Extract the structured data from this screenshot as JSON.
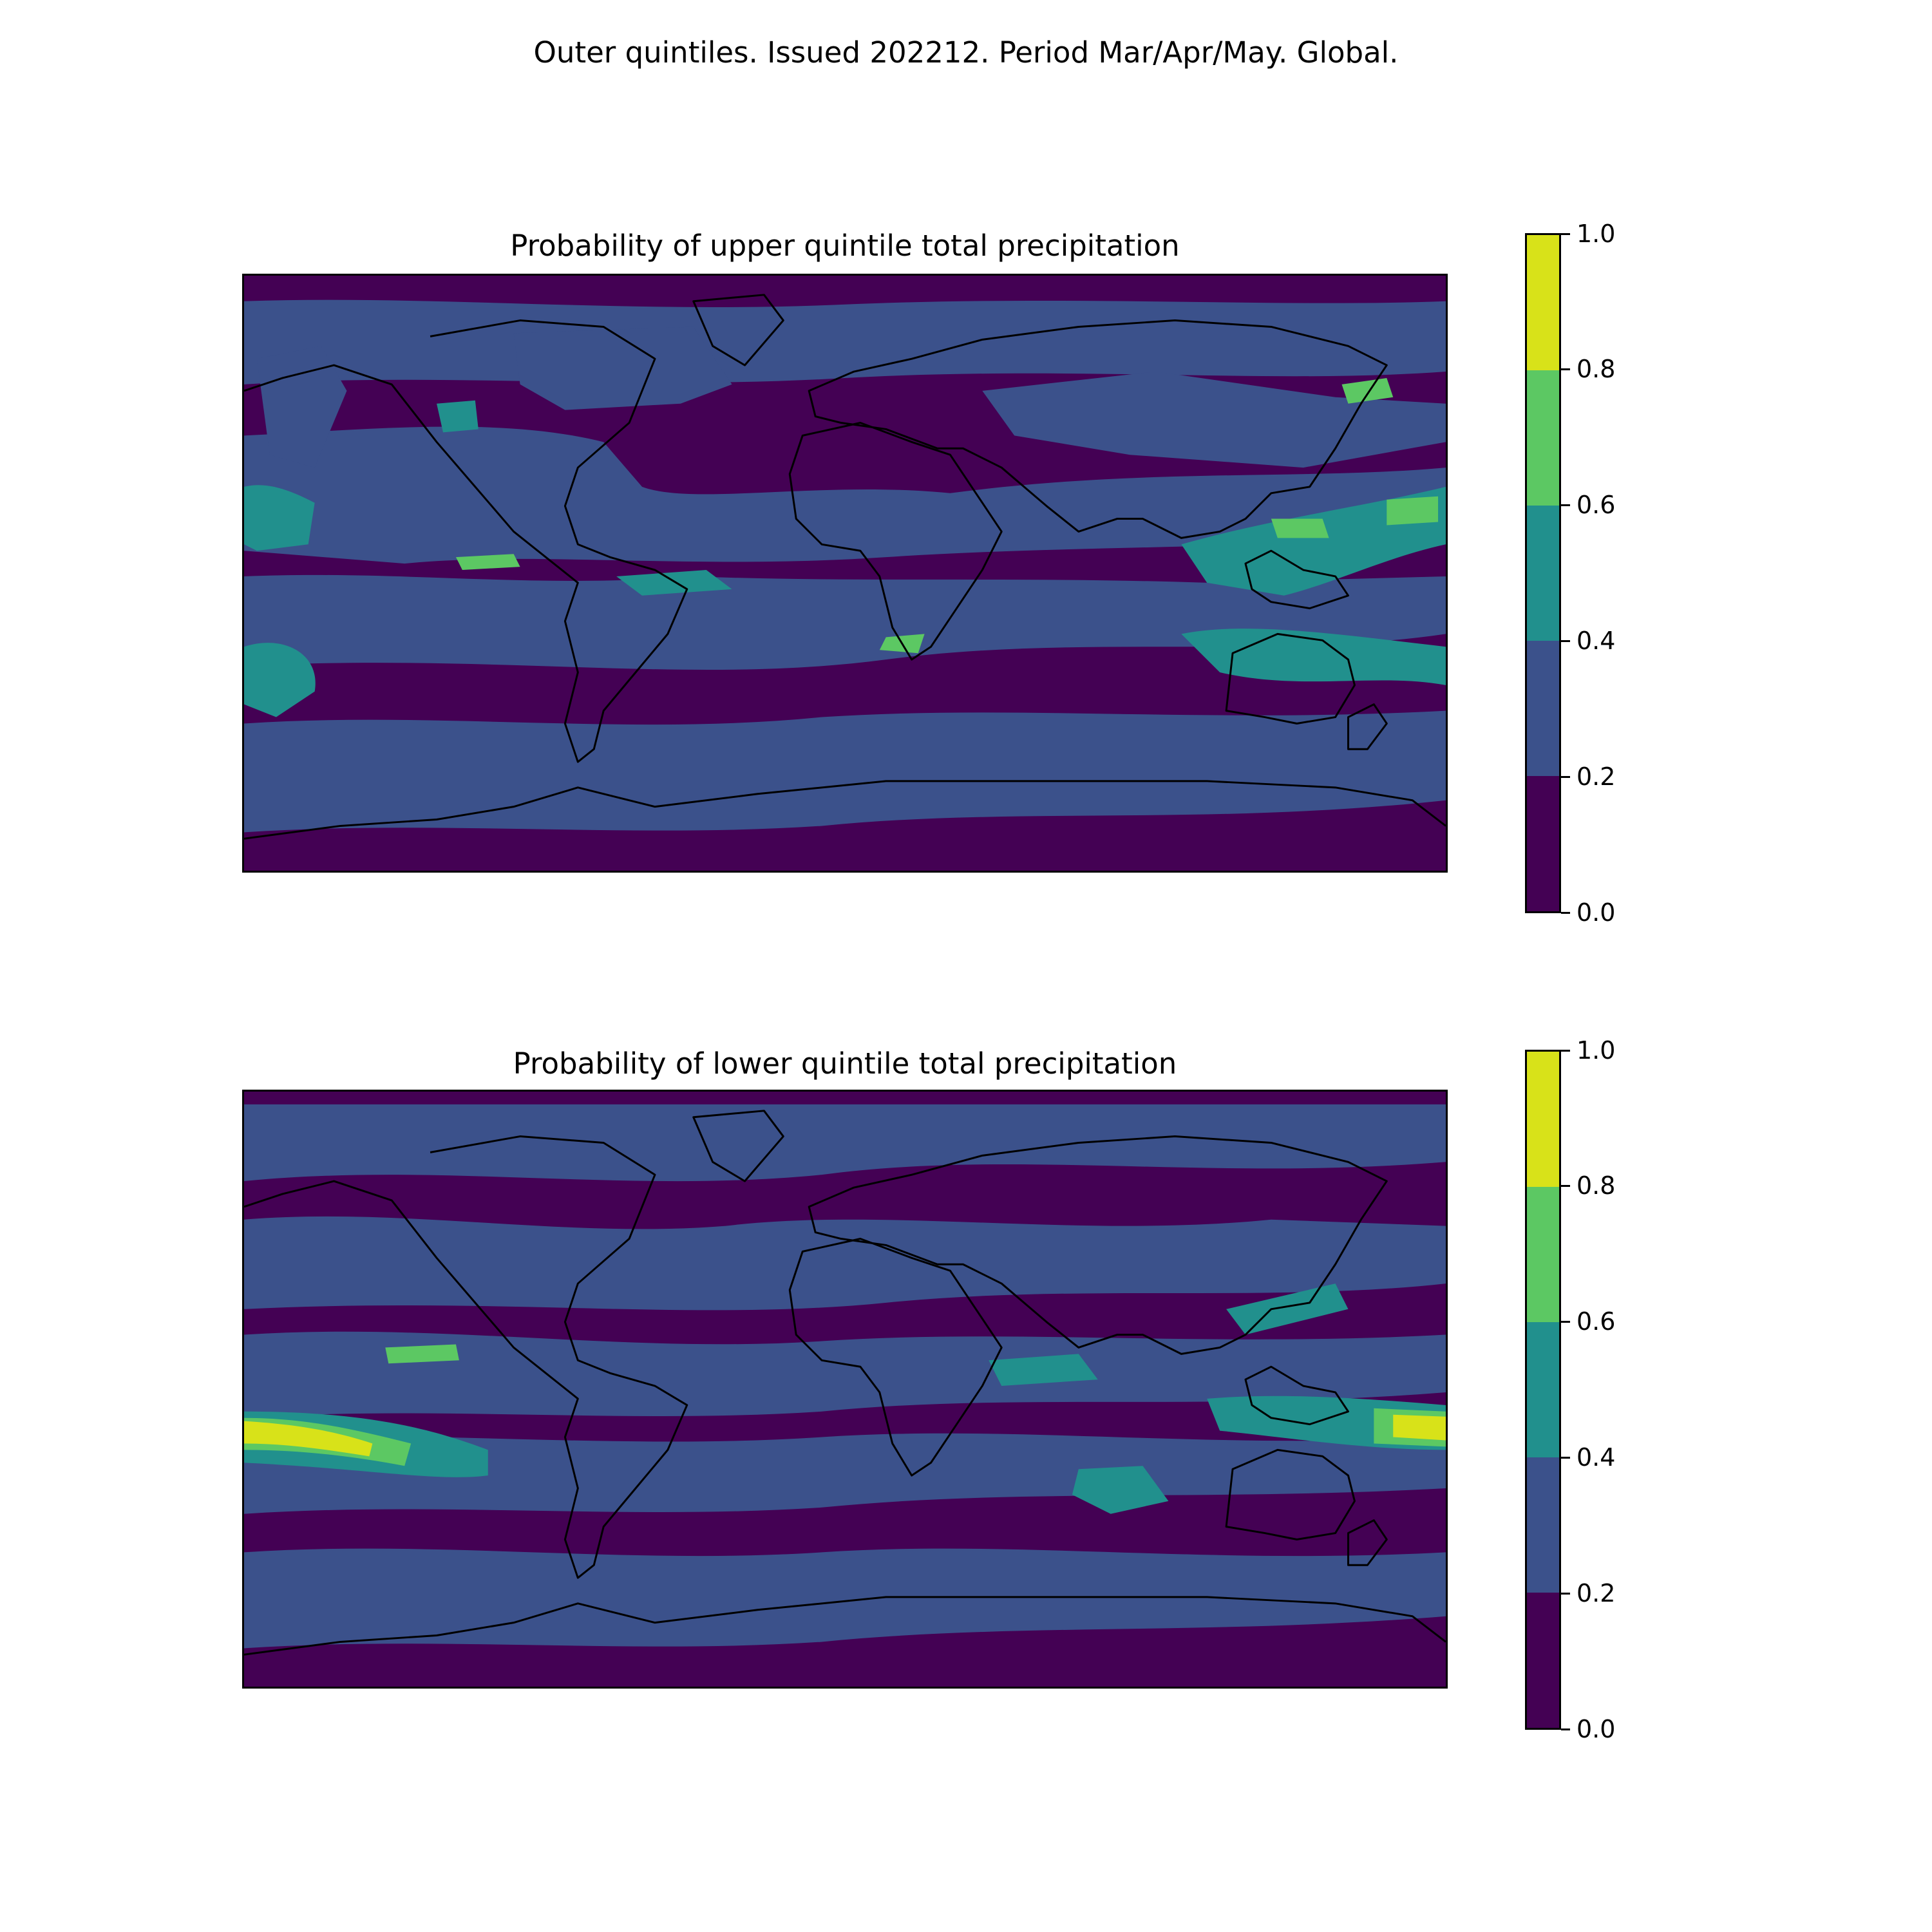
{
  "suptitle": "Outer quintiles. Issued 202212. Period Mar/Apr/May. Global.",
  "colors": {
    "band_0": "#440154",
    "band_1": "#3b518b",
    "band_2": "#21908d",
    "band_3": "#5cc863",
    "band_4": "#d8e219",
    "coast": "#000000"
  },
  "panels": [
    {
      "title": "Probability of upper quintile total precipitation"
    },
    {
      "title": "Probability of lower quintile total precipitation"
    }
  ],
  "colorbar": {
    "levels": [
      0.0,
      0.2,
      0.4,
      0.6,
      0.8,
      1.0
    ],
    "tick_labels": [
      "0.0",
      "0.2",
      "0.4",
      "0.6",
      "0.8",
      "1.0"
    ]
  },
  "chart_data": {
    "type": "heatmap",
    "projection": "plate-carree",
    "extent": {
      "lon": [
        -180,
        180
      ],
      "lat": [
        -90,
        90
      ]
    },
    "value_range": [
      0.0,
      1.0
    ],
    "contour_levels": [
      0.0,
      0.2,
      0.4,
      0.6,
      0.8,
      1.0
    ],
    "colormap": "viridis",
    "panels": [
      {
        "title": "Probability of upper quintile total precipitation"
      },
      {
        "title": "Probability of lower quintile total precipitation"
      }
    ]
  }
}
